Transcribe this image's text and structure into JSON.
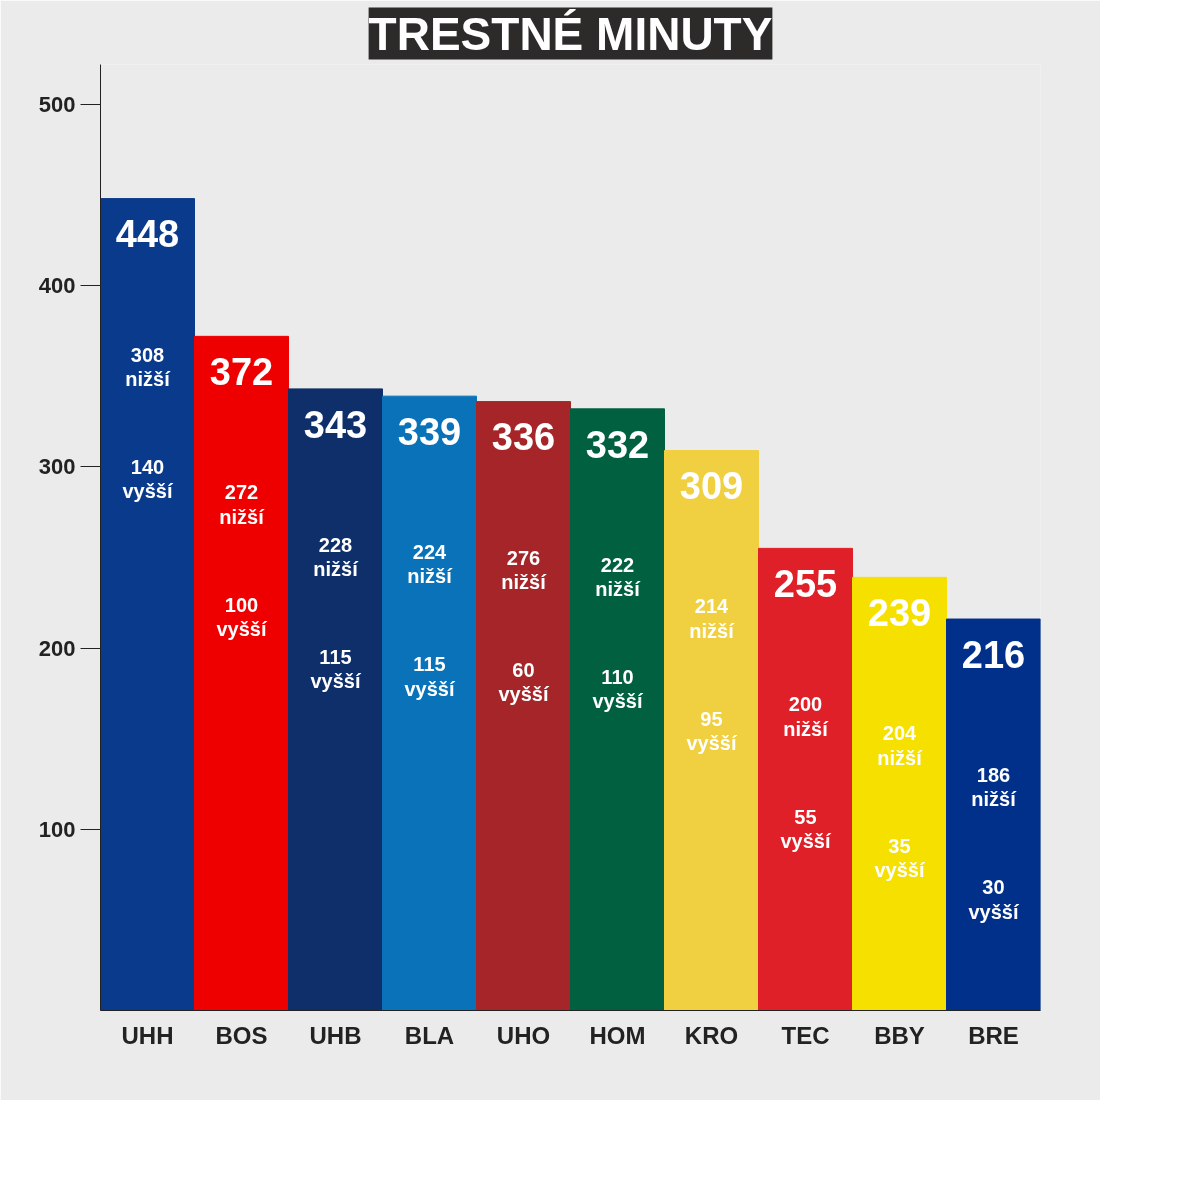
{
  "chart_data": {
    "type": "bar",
    "title": "TRESTNÉ MINUTY",
    "categories": [
      "UHH",
      "BOS",
      "UHB",
      "BLA",
      "UHO",
      "HOM",
      "KRO",
      "TEC",
      "BBY",
      "BRE"
    ],
    "values": [
      448,
      372,
      343,
      339,
      336,
      332,
      309,
      255,
      239,
      216
    ],
    "colors": [
      "#0a3a8c",
      "#ee0000",
      "#0f2f6a",
      "#0a72b8",
      "#a52528",
      "#006040",
      "#f0d040",
      "#e02028",
      "#f5e000",
      "#00308a"
    ],
    "ylim": [
      0,
      522
    ],
    "yticks": [
      100,
      200,
      300,
      400,
      500
    ],
    "data_labels": true,
    "grid": false,
    "annotations": [
      "308\nnižší",
      "140\nvyšší",
      "272\nnižší",
      "100\nvyšší",
      "228\nnižší",
      "115\nvyšší",
      "224\nnižší",
      "115\nvyšší",
      "276\nnižší",
      "60\nvyšší",
      "222\nnižší",
      "110\nvyšší",
      "214\nnižší",
      "95\nvyšší",
      "200\nnižší",
      "55\nvyšší",
      "204\nnižší",
      "35\nvyšší",
      "186\nnižší",
      "30\nvyšší"
    ]
  }
}
